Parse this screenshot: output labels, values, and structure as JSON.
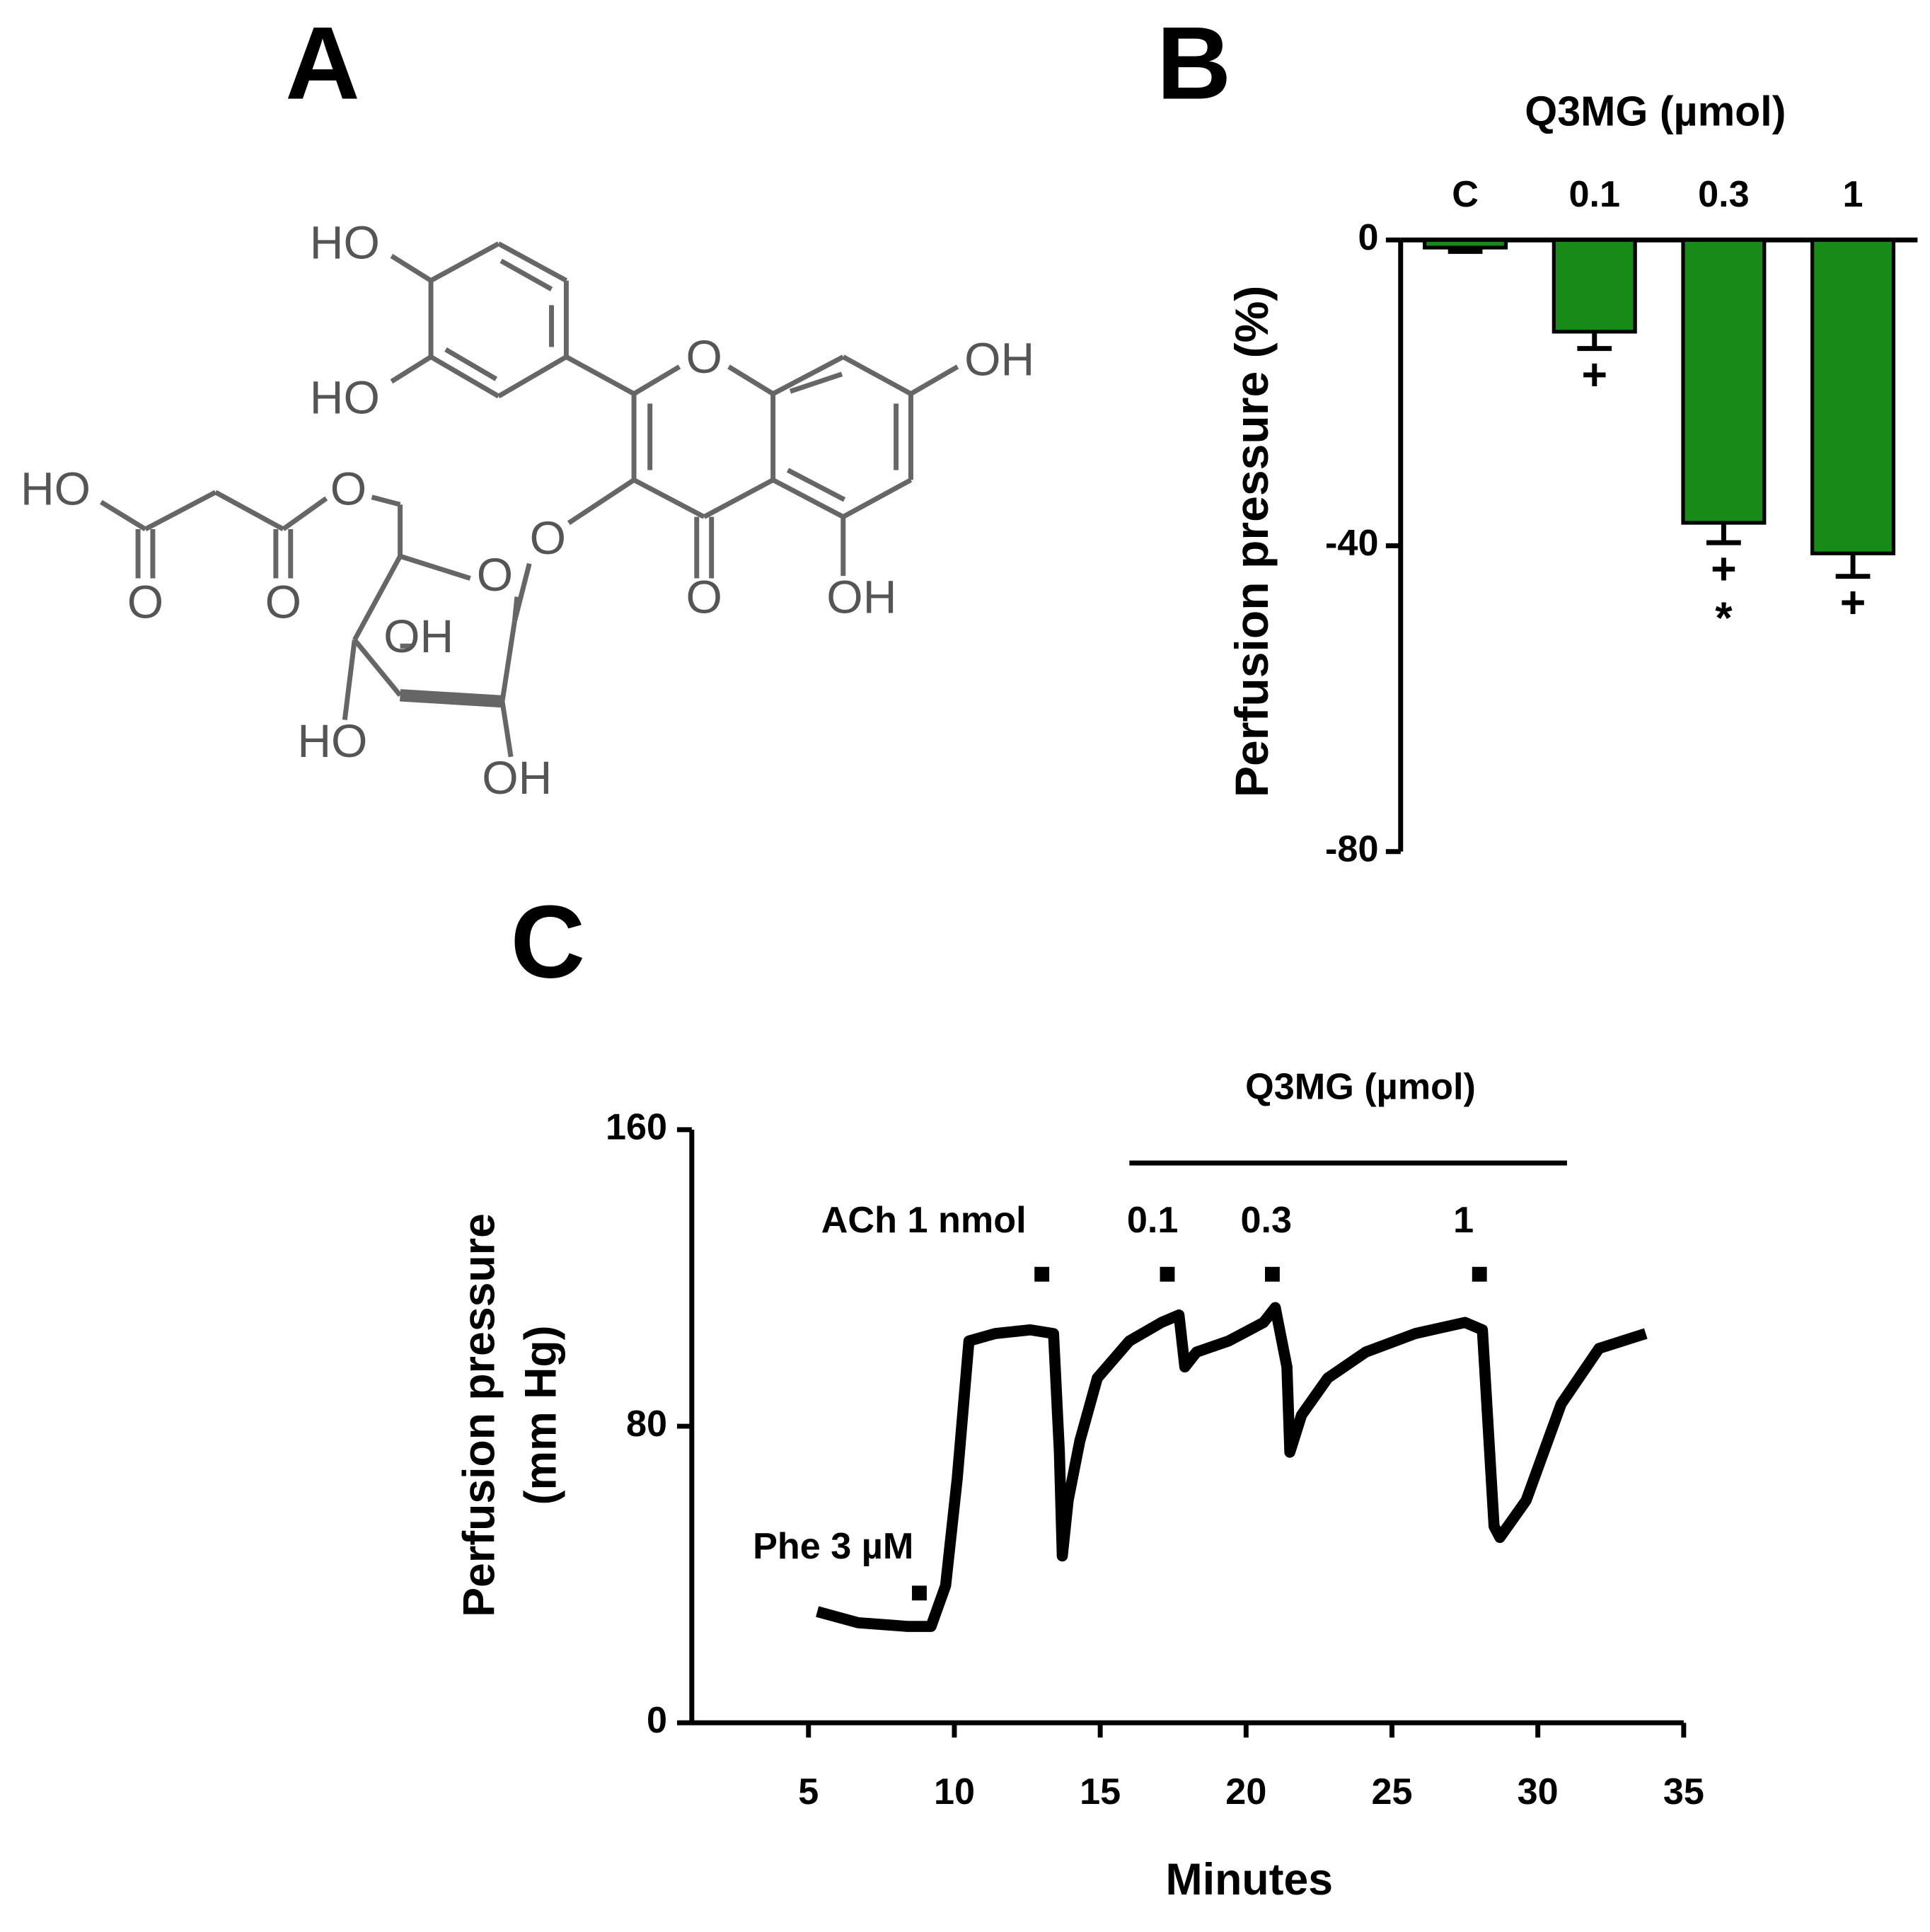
{
  "panel_labels": [
    "A",
    "B",
    "C"
  ],
  "structure": {
    "atom_labels": [
      "HO",
      "HO",
      "O",
      "OH",
      "OH",
      "O",
      "O",
      "O",
      "O",
      "O",
      "O",
      "HO",
      "OH",
      "HO",
      "OH"
    ]
  },
  "chart_data": [
    {
      "type": "bar",
      "title": "Q3MG (µmol)",
      "ylabel": "Perfusion pressure (%)",
      "categories": [
        "C",
        "0.1",
        "0.3",
        "1"
      ],
      "values": [
        -1,
        -12,
        -37,
        -41
      ],
      "errors": [
        0.5,
        2.2,
        2.6,
        3
      ],
      "significance": [
        null,
        [
          "+"
        ],
        [
          "+",
          "*"
        ],
        [
          "+"
        ]
      ],
      "color": "#178a17",
      "ylim": [
        -80,
        0
      ],
      "yticks": [
        0,
        -40,
        -80
      ]
    },
    {
      "type": "line",
      "xlabel": "Minutes",
      "ylabel": [
        "Perfusion pressure",
        "(mm Hg)"
      ],
      "x": [
        5.3,
        6.7,
        8.4,
        9.2,
        9.7,
        10.1,
        10.5,
        11.4,
        12.6,
        13.4,
        13.6,
        13.7,
        13.9,
        14.3,
        14.9,
        16.0,
        17.1,
        17.7,
        17.9,
        18.3,
        19.4,
        20.6,
        21.0,
        21.4,
        21.5,
        21.9,
        22.8,
        24.1,
        25.8,
        27.5,
        28.1,
        28.5,
        28.7,
        29.6,
        30.8,
        32.1,
        33.7
      ],
      "values": [
        30,
        27,
        26,
        26,
        37,
        66,
        103,
        105,
        106,
        105,
        73,
        45,
        60,
        76,
        93,
        103,
        108,
        110,
        96,
        100,
        103,
        108,
        112,
        96,
        73,
        83,
        93,
        100,
        105,
        108,
        106,
        53,
        50,
        60,
        86,
        101,
        105
      ],
      "color": "#000000",
      "xlim": [
        1,
        35
      ],
      "xticks": [
        5,
        10,
        15,
        20,
        25,
        30,
        35
      ],
      "ylim": [
        0,
        160
      ],
      "yticks": [
        0,
        80,
        160
      ],
      "annotations": [
        {
          "text": "Phe 3 µM",
          "x": 8.8,
          "y": 35
        },
        {
          "text": "ACh 1 nmol",
          "x": 13.0,
          "y": 121
        },
        {
          "text": "0.1",
          "x": 17.3,
          "y": 121
        },
        {
          "text": "0.3",
          "x": 20.9,
          "y": 121
        },
        {
          "text": "1",
          "x": 28.0,
          "y": 121
        }
      ],
      "bracket": {
        "text": "Q3MG (µmol)",
        "x": [
          16,
          31
        ],
        "y": 151
      }
    }
  ]
}
